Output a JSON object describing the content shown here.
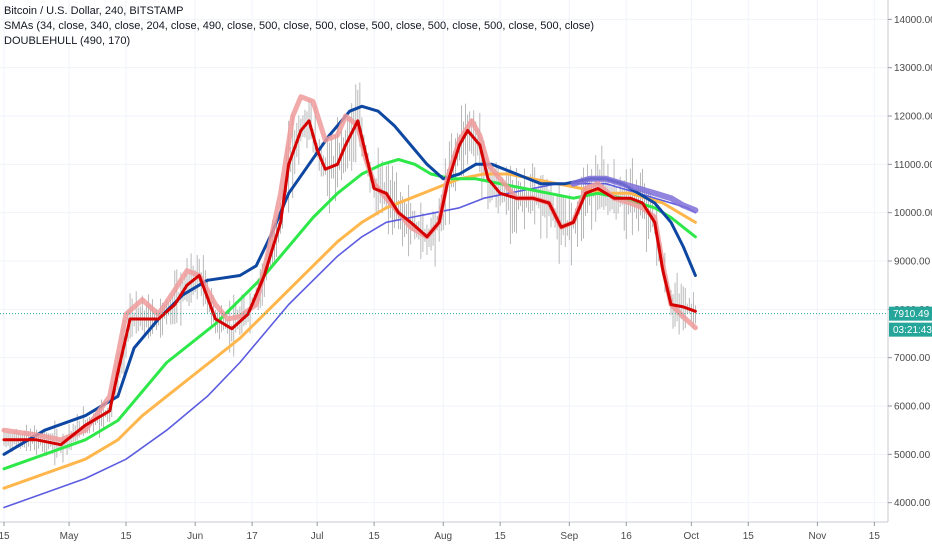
{
  "legend": {
    "title": "Bitcoin / U.S. Dollar, 240, BITSTAMP",
    "smas": "SMAs (34, close, 340, close, 204, close, 490, close, 500, close, 500, close, 500, close, 500, close, 500, close, 500, close)",
    "hull": "DOUBLEHULL (490, 170)"
  },
  "price_label": "7910.49",
  "countdown_label": "03:21:43",
  "colors": {
    "price_tag": "#26a69a",
    "countdown_tag": "#26a69a",
    "candles": "#8a8a8a",
    "red": "#d50000",
    "pink": "#ef9a9a",
    "blue": "#0d47a1",
    "green": "#2ee84a",
    "orange": "#ffb74d",
    "purple": "#5c5ce0",
    "purple_thick": "#7e6fd8",
    "dotted": "#26a69a"
  },
  "chart_data": {
    "type": "line",
    "ylim": [
      3600,
      14400
    ],
    "y_ticks": [
      4000,
      5000,
      6000,
      7000,
      8000,
      9000,
      10000,
      11000,
      12000,
      13000,
      14000
    ],
    "y_tick_labels": [
      "4000.00",
      "5000.00",
      "6000.00",
      "7000.00",
      "8000.00",
      "9000.00",
      "10000.00",
      "11000.00",
      "12000.00",
      "13000.00",
      "14000.00"
    ],
    "x_range_days": [
      0,
      215
    ],
    "x_ticks": [
      {
        "day": 0,
        "label": "15"
      },
      {
        "day": 16,
        "label": "May"
      },
      {
        "day": 30,
        "label": "15"
      },
      {
        "day": 47,
        "label": "Jun"
      },
      {
        "day": 61,
        "label": "17"
      },
      {
        "day": 77,
        "label": "Jul"
      },
      {
        "day": 91,
        "label": "15"
      },
      {
        "day": 108,
        "label": "Aug"
      },
      {
        "day": 122,
        "label": "15"
      },
      {
        "day": 139,
        "label": "Sep"
      },
      {
        "day": 153,
        "label": "16"
      },
      {
        "day": 169,
        "label": "Oct"
      },
      {
        "day": 183,
        "label": "15"
      },
      {
        "day": 200,
        "label": "Nov"
      },
      {
        "day": 214,
        "label": "15"
      }
    ],
    "current_price": 7910.49,
    "series": [
      {
        "color_key": "red",
        "points": [
          [
            0,
            5300
          ],
          [
            8,
            5300
          ],
          [
            14,
            5200
          ],
          [
            20,
            5600
          ],
          [
            26,
            5900
          ],
          [
            28,
            6700
          ],
          [
            31,
            7800
          ],
          [
            34,
            7800
          ],
          [
            38,
            7800
          ],
          [
            42,
            8100
          ],
          [
            45,
            8500
          ],
          [
            48,
            8700
          ],
          [
            52,
            7800
          ],
          [
            56,
            7600
          ],
          [
            60,
            7900
          ],
          [
            64,
            8700
          ],
          [
            68,
            9800
          ],
          [
            70,
            11000
          ],
          [
            73,
            11700
          ],
          [
            75,
            11900
          ],
          [
            77,
            11300
          ],
          [
            79,
            10900
          ],
          [
            82,
            11000
          ],
          [
            84,
            11400
          ],
          [
            87,
            11900
          ],
          [
            89,
            11200
          ],
          [
            91,
            10500
          ],
          [
            94,
            10400
          ],
          [
            97,
            10000
          ],
          [
            100,
            9800
          ],
          [
            104,
            9500
          ],
          [
            107,
            9800
          ],
          [
            109,
            10600
          ],
          [
            112,
            11400
          ],
          [
            114,
            11700
          ],
          [
            117,
            11400
          ],
          [
            119,
            10700
          ],
          [
            122,
            10400
          ],
          [
            126,
            10300
          ],
          [
            130,
            10300
          ],
          [
            134,
            10200
          ],
          [
            137,
            9700
          ],
          [
            140,
            9800
          ],
          [
            143,
            10400
          ],
          [
            146,
            10500
          ],
          [
            150,
            10300
          ],
          [
            154,
            10300
          ],
          [
            157,
            10200
          ],
          [
            160,
            9800
          ],
          [
            162,
            8800
          ],
          [
            164,
            8100
          ],
          [
            167,
            8050
          ],
          [
            170,
            7960
          ]
        ]
      },
      {
        "color_key": "pink",
        "points": [
          [
            0,
            5500
          ],
          [
            8,
            5400
          ],
          [
            14,
            5300
          ],
          [
            20,
            5500
          ],
          [
            26,
            6200
          ],
          [
            30,
            7900
          ],
          [
            34,
            8200
          ],
          [
            38,
            7900
          ],
          [
            42,
            8400
          ],
          [
            45,
            8800
          ],
          [
            48,
            8700
          ],
          [
            52,
            8100
          ],
          [
            55,
            7800
          ],
          [
            58,
            7850
          ],
          [
            62,
            8100
          ],
          [
            65,
            9200
          ],
          [
            68,
            10400
          ],
          [
            71,
            12000
          ],
          [
            73,
            12400
          ],
          [
            76,
            12300
          ],
          [
            79,
            11500
          ],
          [
            82,
            11600
          ],
          [
            84,
            12000
          ],
          [
            87,
            11800
          ],
          [
            89,
            11100
          ],
          [
            91,
            10600
          ],
          [
            94,
            10300
          ],
          [
            97,
            10000
          ],
          [
            100,
            9700
          ],
          [
            104,
            9500
          ],
          [
            107,
            9800
          ],
          [
            109,
            10700
          ],
          [
            112,
            11500
          ],
          [
            115,
            11900
          ],
          [
            117,
            11600
          ],
          [
            119,
            11000
          ],
          [
            122,
            10700
          ],
          [
            126,
            10300
          ],
          [
            130,
            10300
          ],
          [
            134,
            10200
          ],
          [
            137,
            9700
          ],
          [
            140,
            9800
          ],
          [
            143,
            10500
          ],
          [
            146,
            10600
          ],
          [
            150,
            10300
          ],
          [
            154,
            10200
          ],
          [
            157,
            10100
          ],
          [
            160,
            9900
          ],
          [
            162,
            8900
          ],
          [
            164,
            8100
          ],
          [
            167,
            7850
          ],
          [
            170,
            7620
          ]
        ]
      },
      {
        "color_key": "blue",
        "points": [
          [
            0,
            5000
          ],
          [
            10,
            5500
          ],
          [
            20,
            5800
          ],
          [
            28,
            6200
          ],
          [
            32,
            7200
          ],
          [
            38,
            7800
          ],
          [
            44,
            8300
          ],
          [
            50,
            8600
          ],
          [
            58,
            8700
          ],
          [
            62,
            8900
          ],
          [
            66,
            9600
          ],
          [
            70,
            10400
          ],
          [
            75,
            11000
          ],
          [
            80,
            11600
          ],
          [
            85,
            12100
          ],
          [
            88,
            12200
          ],
          [
            92,
            12100
          ],
          [
            96,
            11800
          ],
          [
            100,
            11400
          ],
          [
            104,
            11000
          ],
          [
            108,
            10700
          ],
          [
            112,
            10800
          ],
          [
            116,
            11000
          ],
          [
            120,
            11000
          ],
          [
            126,
            10800
          ],
          [
            132,
            10600
          ],
          [
            138,
            10600
          ],
          [
            144,
            10700
          ],
          [
            148,
            10700
          ],
          [
            152,
            10600
          ],
          [
            156,
            10400
          ],
          [
            160,
            10200
          ],
          [
            164,
            9800
          ],
          [
            167,
            9300
          ],
          [
            170,
            8700
          ]
        ]
      },
      {
        "color_key": "green",
        "points": [
          [
            0,
            4700
          ],
          [
            10,
            5000
          ],
          [
            20,
            5300
          ],
          [
            28,
            5700
          ],
          [
            34,
            6300
          ],
          [
            40,
            6900
          ],
          [
            46,
            7300
          ],
          [
            52,
            7700
          ],
          [
            58,
            8200
          ],
          [
            64,
            8700
          ],
          [
            70,
            9300
          ],
          [
            76,
            9900
          ],
          [
            82,
            10400
          ],
          [
            88,
            10800
          ],
          [
            93,
            11000
          ],
          [
            97,
            11100
          ],
          [
            101,
            11000
          ],
          [
            105,
            10800
          ],
          [
            110,
            10700
          ],
          [
            116,
            10700
          ],
          [
            122,
            10600
          ],
          [
            128,
            10500
          ],
          [
            134,
            10400
          ],
          [
            140,
            10300
          ],
          [
            146,
            10400
          ],
          [
            152,
            10300
          ],
          [
            156,
            10200
          ],
          [
            160,
            10100
          ],
          [
            164,
            9900
          ],
          [
            167,
            9700
          ],
          [
            170,
            9500
          ]
        ]
      },
      {
        "color_key": "orange",
        "points": [
          [
            0,
            4300
          ],
          [
            10,
            4600
          ],
          [
            20,
            4900
          ],
          [
            28,
            5300
          ],
          [
            34,
            5800
          ],
          [
            40,
            6200
          ],
          [
            46,
            6600
          ],
          [
            52,
            7000
          ],
          [
            58,
            7400
          ],
          [
            64,
            7900
          ],
          [
            70,
            8400
          ],
          [
            76,
            8900
          ],
          [
            82,
            9400
          ],
          [
            88,
            9800
          ],
          [
            94,
            10100
          ],
          [
            100,
            10300
          ],
          [
            106,
            10500
          ],
          [
            112,
            10700
          ],
          [
            118,
            10800
          ],
          [
            124,
            10800
          ],
          [
            130,
            10700
          ],
          [
            136,
            10600
          ],
          [
            142,
            10500
          ],
          [
            148,
            10400
          ],
          [
            154,
            10400
          ],
          [
            158,
            10300
          ],
          [
            162,
            10200
          ],
          [
            166,
            10000
          ],
          [
            170,
            9800
          ]
        ]
      },
      {
        "color_key": "purple",
        "points": [
          [
            0,
            3900
          ],
          [
            10,
            4200
          ],
          [
            20,
            4500
          ],
          [
            30,
            4900
          ],
          [
            40,
            5500
          ],
          [
            50,
            6200
          ],
          [
            58,
            6900
          ],
          [
            64,
            7500
          ],
          [
            70,
            8100
          ],
          [
            76,
            8600
          ],
          [
            82,
            9100
          ],
          [
            88,
            9500
          ],
          [
            94,
            9800
          ],
          [
            100,
            9900
          ],
          [
            106,
            10000
          ],
          [
            112,
            10100
          ],
          [
            118,
            10300
          ],
          [
            124,
            10400
          ],
          [
            130,
            10500
          ],
          [
            136,
            10600
          ],
          [
            142,
            10600
          ],
          [
            148,
            10600
          ],
          [
            152,
            10500
          ],
          [
            156,
            10400
          ],
          [
            160,
            10300
          ],
          [
            164,
            10200
          ],
          [
            168,
            10100
          ],
          [
            170,
            10000
          ]
        ]
      },
      {
        "color_key": "purple_thick",
        "points": [
          [
            140,
            10600
          ],
          [
            144,
            10700
          ],
          [
            148,
            10700
          ],
          [
            152,
            10600
          ],
          [
            156,
            10500
          ],
          [
            160,
            10400
          ],
          [
            164,
            10300
          ],
          [
            167,
            10150
          ],
          [
            170,
            10050
          ]
        ]
      }
    ]
  }
}
